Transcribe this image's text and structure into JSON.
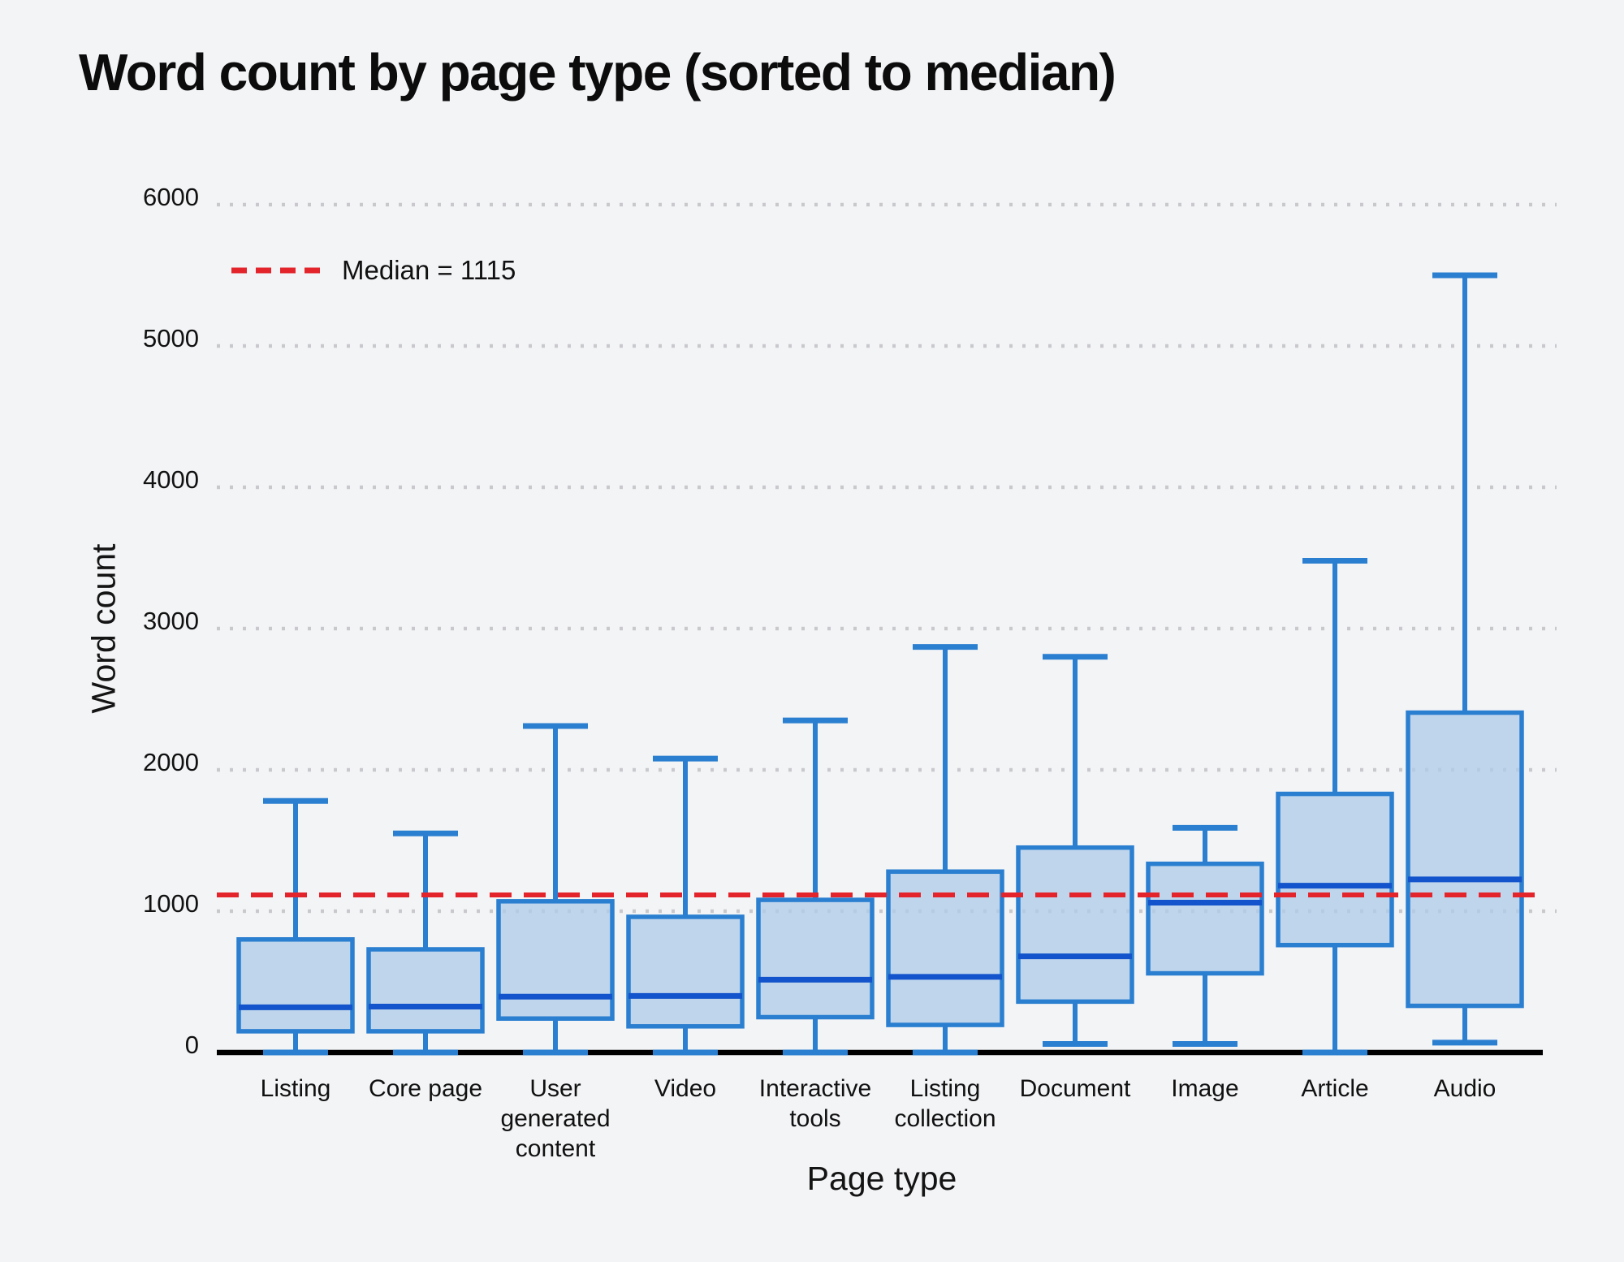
{
  "title": "Word count by page type (sorted to median)",
  "legend": {
    "label": "Median = 1115"
  },
  "colors": {
    "background": "#f3f4f6",
    "box_border_blue": "#2b7fd0",
    "box_fill_blue": "rgba(174,203,232,0.75)",
    "median_blue": "#1353cb",
    "reference_red": "#e3242b",
    "grid_dot_gray": "#c9c9cd",
    "axis_black": "#000000",
    "text": "#111111"
  },
  "chart_data": {
    "type": "box",
    "title": "Word count by page type (sorted to median)",
    "xlabel": "Page type",
    "ylabel": "Word count",
    "ylim": [
      0,
      6000
    ],
    "yticks": [
      0,
      1000,
      2000,
      3000,
      4000,
      5000,
      6000
    ],
    "grid": "horizontal dotted",
    "legend_position": "top-left inside plot",
    "reference_line": {
      "label": "Median = 1115",
      "value": 1115,
      "style": "red dashed"
    },
    "categories": [
      "Listing",
      "Core page",
      "User generated content",
      "Video",
      "Interactive tools",
      "Listing collection",
      "Document",
      "Image",
      "Article",
      "Audio"
    ],
    "series": [
      {
        "label": "Listing",
        "whisker_low": 0,
        "q1": 150,
        "median": 320,
        "q3": 800,
        "whisker_high": 1780
      },
      {
        "label": "Core page",
        "whisker_low": 0,
        "q1": 150,
        "median": 325,
        "q3": 730,
        "whisker_high": 1550
      },
      {
        "label": "User generated content",
        "whisker_low": 0,
        "q1": 240,
        "median": 395,
        "q3": 1070,
        "whisker_high": 2310
      },
      {
        "label": "Video",
        "whisker_low": 0,
        "q1": 185,
        "median": 400,
        "q3": 960,
        "whisker_high": 2080
      },
      {
        "label": "Interactive tools",
        "whisker_low": 0,
        "q1": 250,
        "median": 515,
        "q3": 1080,
        "whisker_high": 2350
      },
      {
        "label": "Listing collection",
        "whisker_low": 0,
        "q1": 195,
        "median": 535,
        "q3": 1280,
        "whisker_high": 2870
      },
      {
        "label": "Document",
        "whisker_low": 60,
        "q1": 360,
        "median": 680,
        "q3": 1450,
        "whisker_high": 2800
      },
      {
        "label": "Image",
        "whisker_low": 60,
        "q1": 560,
        "median": 1060,
        "q3": 1335,
        "whisker_high": 1590
      },
      {
        "label": "Article",
        "whisker_low": 0,
        "q1": 760,
        "median": 1180,
        "q3": 1830,
        "whisker_high": 3480
      },
      {
        "label": "Audio",
        "whisker_low": 70,
        "q1": 330,
        "median": 1225,
        "q3": 2405,
        "whisker_high": 5500
      }
    ]
  }
}
